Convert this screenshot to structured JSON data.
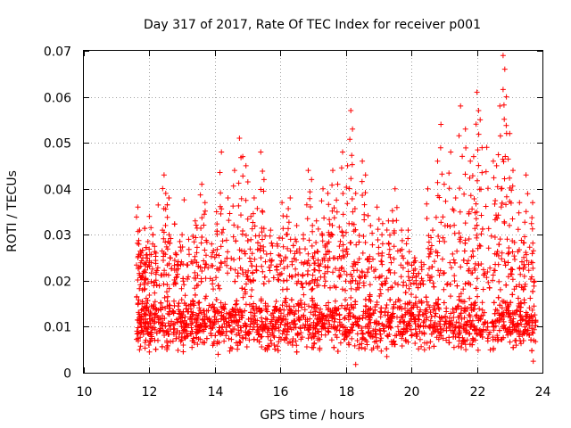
{
  "chart_data": {
    "type": "scatter",
    "title": "Day 317 of 2017, Rate Of TEC Index for receiver p001",
    "xlabel": "GPS time / hours",
    "ylabel": "ROTI / TECUs",
    "xlim": [
      10,
      24
    ],
    "ylim": [
      0,
      0.07
    ],
    "x_ticks": [
      "10",
      "12",
      "14",
      "16",
      "18",
      "20",
      "22",
      "24"
    ],
    "y_ticks": [
      "0",
      "0.01",
      "0.02",
      "0.03",
      "0.04",
      "0.05",
      "0.06",
      "0.07"
    ],
    "grid": true,
    "marker": "+",
    "series": [
      {
        "name": "p001",
        "color": "#ff0000",
        "points": [
          [
            11.65,
            0.036
          ],
          [
            11.7,
            0.031
          ],
          [
            11.75,
            0.026
          ],
          [
            11.8,
            0.025
          ],
          [
            11.9,
            0.024
          ],
          [
            12.0,
            0.034
          ],
          [
            12.1,
            0.028
          ],
          [
            12.2,
            0.026
          ],
          [
            12.4,
            0.031
          ],
          [
            12.45,
            0.043
          ],
          [
            12.5,
            0.039
          ],
          [
            12.6,
            0.03
          ],
          [
            12.8,
            0.026
          ],
          [
            13.0,
            0.03
          ],
          [
            13.2,
            0.029
          ],
          [
            13.4,
            0.033
          ],
          [
            13.6,
            0.041
          ],
          [
            13.7,
            0.037
          ],
          [
            13.9,
            0.028
          ],
          [
            14.05,
            0.035
          ],
          [
            14.2,
            0.048
          ],
          [
            14.4,
            0.038
          ],
          [
            14.6,
            0.044
          ],
          [
            14.75,
            0.051
          ],
          [
            14.85,
            0.047
          ],
          [
            14.95,
            0.045
          ],
          [
            15.1,
            0.034
          ],
          [
            15.2,
            0.038
          ],
          [
            15.4,
            0.048
          ],
          [
            15.5,
            0.042
          ],
          [
            15.7,
            0.031
          ],
          [
            15.9,
            0.028
          ],
          [
            16.05,
            0.037
          ],
          [
            16.2,
            0.034
          ],
          [
            16.3,
            0.038
          ],
          [
            16.5,
            0.032
          ],
          [
            16.7,
            0.03
          ],
          [
            16.85,
            0.044
          ],
          [
            16.95,
            0.042
          ],
          [
            17.1,
            0.033
          ],
          [
            17.3,
            0.04
          ],
          [
            17.45,
            0.039
          ],
          [
            17.6,
            0.044
          ],
          [
            17.75,
            0.041
          ],
          [
            17.9,
            0.048
          ],
          [
            18.05,
            0.045
          ],
          [
            18.15,
            0.057
          ],
          [
            18.2,
            0.053
          ],
          [
            18.3,
            0.039
          ],
          [
            18.5,
            0.046
          ],
          [
            18.6,
            0.043
          ],
          [
            18.75,
            0.032
          ],
          [
            18.95,
            0.036
          ],
          [
            19.1,
            0.03
          ],
          [
            19.3,
            0.033
          ],
          [
            19.5,
            0.04
          ],
          [
            19.7,
            0.031
          ],
          [
            19.9,
            0.031
          ],
          [
            20.1,
            0.025
          ],
          [
            20.3,
            0.024
          ],
          [
            20.5,
            0.04
          ],
          [
            20.65,
            0.031
          ],
          [
            20.8,
            0.046
          ],
          [
            20.9,
            0.054
          ],
          [
            21.0,
            0.041
          ],
          [
            21.2,
            0.048
          ],
          [
            21.35,
            0.038
          ],
          [
            21.5,
            0.058
          ],
          [
            21.65,
            0.053
          ],
          [
            21.8,
            0.046
          ],
          [
            21.9,
            0.047
          ],
          [
            22.0,
            0.061
          ],
          [
            22.05,
            0.057
          ],
          [
            22.1,
            0.055
          ],
          [
            22.3,
            0.049
          ],
          [
            22.5,
            0.046
          ],
          [
            22.6,
            0.045
          ],
          [
            22.7,
            0.058
          ],
          [
            22.8,
            0.069
          ],
          [
            22.85,
            0.066
          ],
          [
            22.9,
            0.06
          ],
          [
            23.0,
            0.052
          ],
          [
            23.1,
            0.044
          ],
          [
            23.3,
            0.037
          ],
          [
            23.5,
            0.043
          ],
          [
            23.7,
            0.037
          ],
          [
            23.72,
            0.0025
          ],
          [
            18.3,
            0.0018
          ],
          [
            19.25,
            0.0035
          ],
          [
            14.1,
            0.004
          ],
          [
            12.0,
            0.0045
          ],
          [
            11.7,
            0.005
          ],
          [
            15.6,
            0.005
          ],
          [
            16.5,
            0.0045
          ],
          [
            17.2,
            0.005
          ],
          [
            20.4,
            0.005
          ],
          [
            21.3,
            0.0055
          ],
          [
            22.5,
            0.005
          ],
          [
            23.2,
            0.006
          ],
          [
            13.3,
            0.0055
          ]
        ]
      }
    ],
    "dense_cloud": {
      "x_range": [
        11.6,
        23.8
      ],
      "core_range": [
        0.006,
        0.018
      ],
      "median": 0.011
    }
  }
}
